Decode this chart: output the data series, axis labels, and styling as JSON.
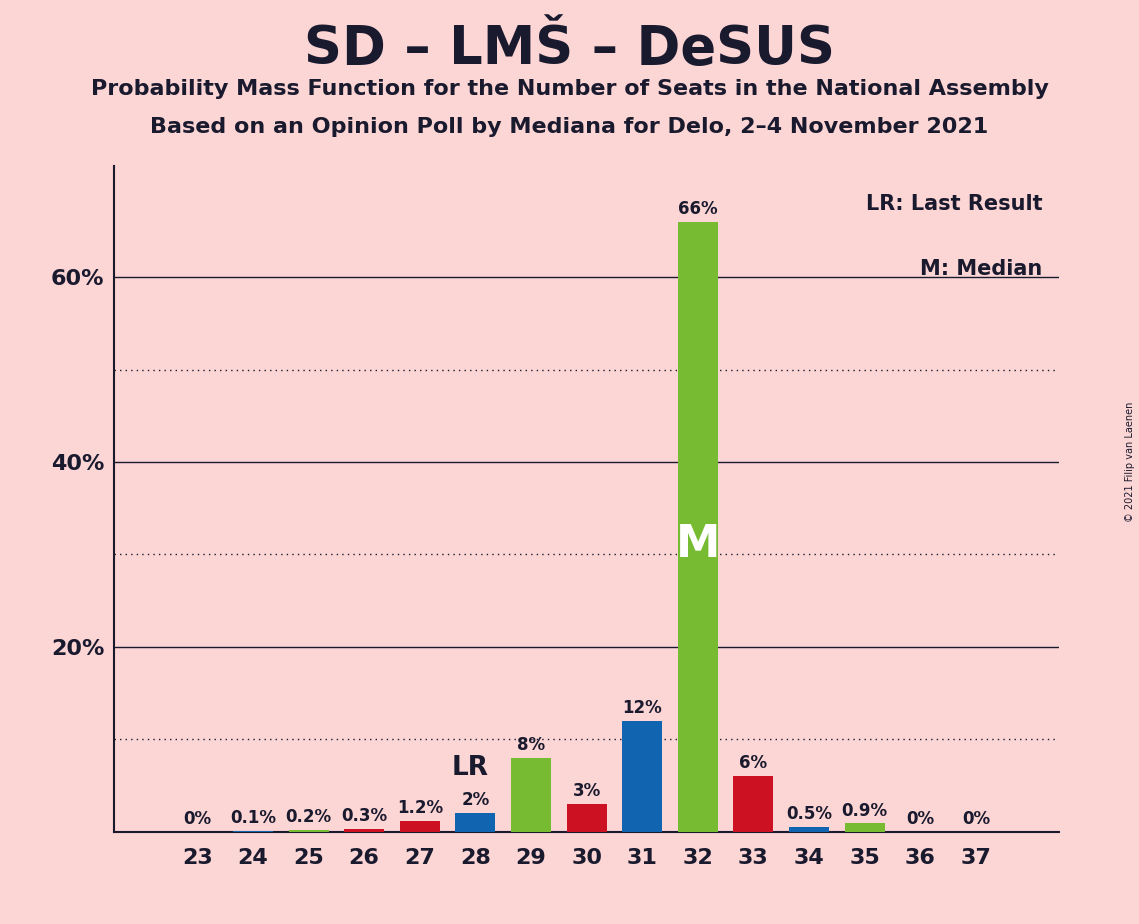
{
  "title": "SD – LMŠ – DeSUS",
  "subtitle1": "Probability Mass Function for the Number of Seats in the National Assembly",
  "subtitle2": "Based on an Opinion Poll by Mediana for Delo, 2–4 November 2021",
  "copyright": "© 2021 Filip van Laenen",
  "legend_lr": "LR: Last Result",
  "legend_m": "M: Median",
  "background_color": "#fcd5d5",
  "seats": [
    23,
    24,
    25,
    26,
    27,
    28,
    29,
    30,
    31,
    32,
    33,
    34,
    35,
    36,
    37
  ],
  "values": [
    0.0,
    0.1,
    0.2,
    0.3,
    1.2,
    2.0,
    8.0,
    3.0,
    12.0,
    66.0,
    6.0,
    0.5,
    0.9,
    0.0,
    0.0
  ],
  "labels": [
    "0%",
    "0.1%",
    "0.2%",
    "0.3%",
    "1.2%",
    "2%",
    "8%",
    "3%",
    "12%",
    "66%",
    "6%",
    "0.5%",
    "0.9%",
    "0%",
    "0%"
  ],
  "bar_colors": [
    "#cc1122",
    "#1165b0",
    "#77bb33",
    "#cc1122",
    "#cc1122",
    "#1165b0",
    "#77bb33",
    "#cc1122",
    "#1165b0",
    "#77bb33",
    "#cc1122",
    "#1165b0",
    "#77bb33",
    "#cc1122",
    "#77bb33"
  ],
  "lr_seat": 28,
  "median_seat": 32,
  "ylim_max": 72,
  "yticks": [
    20,
    40,
    60
  ],
  "ytick_labels": [
    "20%",
    "40%",
    "60%"
  ],
  "grid_solid": [
    20,
    40,
    60
  ],
  "grid_dotted": [
    10,
    30,
    50
  ],
  "axis_color": "#1a1a2e",
  "text_color": "#1a1a2e",
  "bar_width": 0.72
}
